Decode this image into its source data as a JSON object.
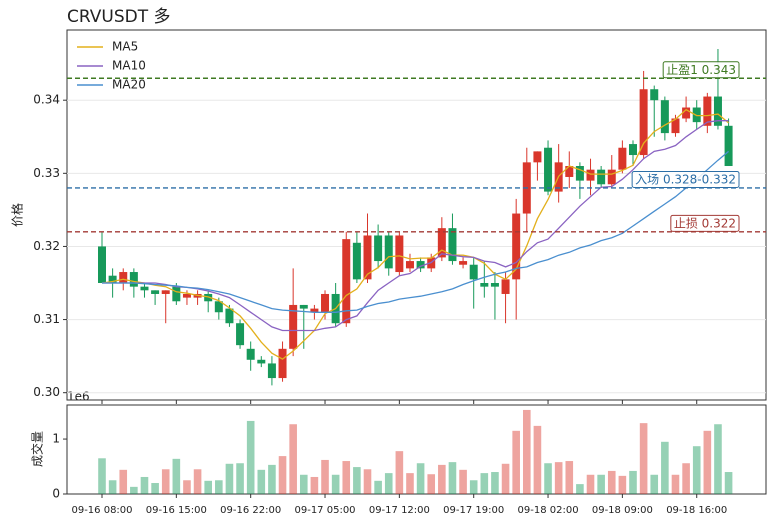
{
  "chart_data": {
    "type": "candlestick",
    "title": "CRVUSDT  多",
    "ylabel": "价格",
    "categories": [
      "09-16 08:00",
      null,
      null,
      null,
      null,
      null,
      null,
      "09-16 15:00",
      null,
      null,
      null,
      null,
      null,
      null,
      "09-16 22:00",
      null,
      null,
      null,
      null,
      null,
      null,
      "09-17 05:00",
      null,
      null,
      null,
      null,
      null,
      null,
      "09-17 12:00",
      null,
      null,
      null,
      null,
      null,
      null,
      "09-17 19:00",
      null,
      null,
      null,
      null,
      null,
      null,
      "09-18 02:00",
      null,
      null,
      null,
      null,
      null,
      null,
      "09-18 09:00",
      null,
      null,
      null,
      null,
      null,
      null,
      "09-18 16:00",
      null,
      null,
      null
    ],
    "open": [
      0.32,
      0.316,
      0.315,
      0.3165,
      0.3145,
      0.314,
      0.3135,
      0.3145,
      0.313,
      0.313,
      0.3135,
      0.3125,
      0.3115,
      0.3095,
      0.306,
      0.3045,
      0.304,
      0.302,
      0.306,
      0.312,
      0.311,
      0.311,
      0.3135,
      0.3095,
      0.3205,
      0.3155,
      0.3215,
      0.3215,
      0.3165,
      0.317,
      0.318,
      0.317,
      0.3185,
      0.3225,
      0.3175,
      0.3175,
      0.315,
      0.315,
      0.3135,
      0.3155,
      0.3245,
      0.3315,
      0.3335,
      0.3275,
      0.3295,
      0.331,
      0.329,
      0.3305,
      0.3285,
      0.3305,
      0.334,
      0.3325,
      0.3415,
      0.34,
      0.3355,
      0.3375,
      0.339,
      0.3365,
      0.3405,
      0.3365
    ],
    "high": [
      0.322,
      0.317,
      0.317,
      0.317,
      0.315,
      0.314,
      0.314,
      0.315,
      0.314,
      0.314,
      0.314,
      0.313,
      0.312,
      0.31,
      0.307,
      0.305,
      0.305,
      0.307,
      0.317,
      0.312,
      0.312,
      0.314,
      0.315,
      0.322,
      0.322,
      0.3245,
      0.323,
      0.322,
      0.322,
      0.319,
      0.3185,
      0.319,
      0.324,
      0.3245,
      0.3185,
      0.3185,
      0.318,
      0.3165,
      0.3165,
      0.3265,
      0.3335,
      0.333,
      0.3345,
      0.334,
      0.333,
      0.3315,
      0.332,
      0.331,
      0.3325,
      0.3345,
      0.3345,
      0.344,
      0.342,
      0.3405,
      0.338,
      0.3405,
      0.34,
      0.341,
      0.347,
      0.3375
    ],
    "low": [
      0.315,
      0.313,
      0.314,
      0.313,
      0.313,
      0.312,
      0.3095,
      0.312,
      0.312,
      0.312,
      0.311,
      0.31,
      0.309,
      0.306,
      0.303,
      0.3035,
      0.301,
      0.3015,
      0.305,
      0.306,
      0.31,
      0.31,
      0.309,
      0.309,
      0.315,
      0.315,
      0.317,
      0.316,
      0.316,
      0.3165,
      0.3165,
      0.3165,
      0.318,
      0.3175,
      0.317,
      0.3115,
      0.313,
      0.31,
      0.3095,
      0.31,
      0.322,
      0.329,
      0.327,
      0.326,
      0.328,
      0.3265,
      0.327,
      0.328,
      0.328,
      0.33,
      0.331,
      0.332,
      0.335,
      0.3345,
      0.335,
      0.337,
      0.336,
      0.3355,
      0.336,
      0.331
    ],
    "close": [
      0.315,
      0.315,
      0.3165,
      0.3145,
      0.314,
      0.3135,
      0.314,
      0.3125,
      0.3135,
      0.3135,
      0.3125,
      0.311,
      0.3095,
      0.3065,
      0.3045,
      0.304,
      0.302,
      0.306,
      0.312,
      0.3115,
      0.3115,
      0.3135,
      0.3095,
      0.321,
      0.3155,
      0.3215,
      0.318,
      0.317,
      0.3215,
      0.318,
      0.317,
      0.3185,
      0.3225,
      0.318,
      0.318,
      0.3155,
      0.3145,
      0.3145,
      0.3155,
      0.3245,
      0.3315,
      0.333,
      0.3275,
      0.3315,
      0.331,
      0.329,
      0.3305,
      0.3285,
      0.3305,
      0.3335,
      0.3325,
      0.3415,
      0.34,
      0.3355,
      0.3375,
      0.339,
      0.337,
      0.3405,
      0.3365,
      0.331
    ],
    "up_color": "#d9362b",
    "down_color": "#17995a",
    "ylim": [
      0.299,
      0.3496
    ],
    "yticks": [
      {
        "value": 0.3,
        "label": "0.30"
      },
      {
        "value": 0.31,
        "label": "0.31"
      },
      {
        "value": 0.32,
        "label": "0.32"
      },
      {
        "value": 0.33,
        "label": "0.33"
      },
      {
        "value": 0.34,
        "label": "0.34"
      }
    ],
    "grid": true,
    "legend": "upper left",
    "series": [
      {
        "name": "MA5",
        "color": "#e3b01c",
        "values": [
          0.315,
          0.3152,
          0.3155,
          0.3152,
          0.315,
          0.3147,
          0.3145,
          0.3138,
          0.3136,
          0.3133,
          0.3131,
          0.3126,
          0.3116,
          0.3105,
          0.3088,
          0.3069,
          0.3054,
          0.3046,
          0.3057,
          0.3071,
          0.3085,
          0.3108,
          0.3115,
          0.3133,
          0.3142,
          0.3162,
          0.3171,
          0.3186,
          0.3187,
          0.3183,
          0.3184,
          0.3184,
          0.3195,
          0.3188,
          0.3188,
          0.3185,
          0.3177,
          0.3162,
          0.3155,
          0.3169,
          0.3201,
          0.3238,
          0.3264,
          0.3296,
          0.331,
          0.3305,
          0.3299,
          0.3299,
          0.3299,
          0.3304,
          0.3311,
          0.3341,
          0.3357,
          0.3366,
          0.3374,
          0.3387,
          0.3379,
          0.3379,
          0.3381,
          0.3369
        ]
      },
      {
        "name": "MA10",
        "color": "#8a63c2",
        "values": [
          0.315,
          0.315,
          0.315,
          0.315,
          0.315,
          0.315,
          0.3148,
          0.3145,
          0.3144,
          0.3142,
          0.3139,
          0.3135,
          0.313,
          0.312,
          0.311,
          0.31,
          0.309,
          0.3085,
          0.3085,
          0.3085,
          0.3085,
          0.3088,
          0.309,
          0.31,
          0.3105,
          0.3123,
          0.314,
          0.315,
          0.316,
          0.3163,
          0.3173,
          0.3178,
          0.319,
          0.3188,
          0.3186,
          0.3185,
          0.318,
          0.3178,
          0.3172,
          0.3178,
          0.3193,
          0.3205,
          0.321,
          0.3225,
          0.324,
          0.3255,
          0.3268,
          0.3281,
          0.3282,
          0.3292,
          0.3305,
          0.332,
          0.333,
          0.3333,
          0.3338,
          0.335,
          0.336,
          0.337,
          0.3372,
          0.3372
        ]
      },
      {
        "name": "MA20",
        "color": "#4a8fcf",
        "values": [
          0.315,
          0.315,
          0.315,
          0.315,
          0.3149,
          0.3148,
          0.3147,
          0.3146,
          0.3144,
          0.3143,
          0.3141,
          0.3138,
          0.3135,
          0.313,
          0.3125,
          0.312,
          0.3115,
          0.3113,
          0.3112,
          0.3111,
          0.311,
          0.311,
          0.311,
          0.3112,
          0.3113,
          0.3118,
          0.3122,
          0.3124,
          0.3128,
          0.313,
          0.3132,
          0.3135,
          0.3138,
          0.3142,
          0.3148,
          0.3153,
          0.3158,
          0.3162,
          0.3165,
          0.317,
          0.3172,
          0.3178,
          0.3182,
          0.3188,
          0.3192,
          0.3198,
          0.3202,
          0.3208,
          0.3212,
          0.3218,
          0.3228,
          0.3238,
          0.3248,
          0.3258,
          0.3268,
          0.328,
          0.3292,
          0.3305,
          0.3318,
          0.333
        ]
      }
    ],
    "levels": [
      {
        "label": "止盈1 0.343",
        "value": 0.343,
        "color": "#3f7a22"
      },
      {
        "label": "入场 0.328-0.332",
        "value": 0.328,
        "color": "#2c6ea6"
      },
      {
        "label": "止损 0.322",
        "value": 0.322,
        "color": "#a33a35"
      }
    ],
    "volume": {
      "ylabel": "成交量",
      "offset_label": "1e6",
      "values": [
        0.65,
        0.25,
        0.44,
        0.13,
        0.31,
        0.2,
        0.45,
        0.64,
        0.25,
        0.45,
        0.24,
        0.25,
        0.55,
        0.56,
        1.33,
        0.44,
        0.53,
        0.69,
        1.27,
        0.35,
        0.31,
        0.62,
        0.35,
        0.6,
        0.49,
        0.45,
        0.24,
        0.38,
        0.78,
        0.38,
        0.56,
        0.36,
        0.53,
        0.58,
        0.44,
        0.25,
        0.38,
        0.4,
        0.55,
        1.15,
        1.53,
        1.24,
        0.56,
        0.58,
        0.6,
        0.18,
        0.35,
        0.35,
        0.42,
        0.33,
        0.42,
        1.29,
        0.35,
        0.95,
        0.35,
        0.56,
        0.87,
        1.15,
        1.27,
        0.4
      ],
      "ylim": [
        0,
        1.62
      ],
      "yticks": [
        0,
        1
      ]
    }
  }
}
